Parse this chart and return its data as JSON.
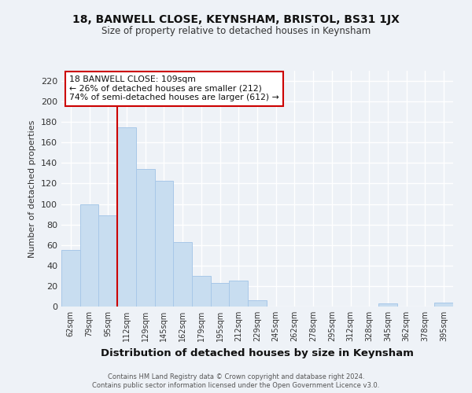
{
  "title": "18, BANWELL CLOSE, KEYNSHAM, BRISTOL, BS31 1JX",
  "subtitle": "Size of property relative to detached houses in Keynsham",
  "xlabel": "Distribution of detached houses by size in Keynsham",
  "ylabel": "Number of detached properties",
  "bar_color": "#c8ddf0",
  "bar_edge_color": "#a8c8e8",
  "bins": [
    "62sqm",
    "79sqm",
    "95sqm",
    "112sqm",
    "129sqm",
    "145sqm",
    "162sqm",
    "179sqm",
    "195sqm",
    "212sqm",
    "229sqm",
    "245sqm",
    "262sqm",
    "278sqm",
    "295sqm",
    "312sqm",
    "328sqm",
    "345sqm",
    "362sqm",
    "378sqm",
    "395sqm"
  ],
  "values": [
    55,
    100,
    89,
    175,
    134,
    123,
    63,
    30,
    23,
    25,
    6,
    0,
    0,
    0,
    0,
    0,
    0,
    3,
    0,
    0,
    4
  ],
  "ylim": [
    0,
    230
  ],
  "yticks": [
    0,
    20,
    40,
    60,
    80,
    100,
    120,
    140,
    160,
    180,
    200,
    220
  ],
  "vline_x": 3,
  "vline_color": "#cc0000",
  "annotation_line1": "18 BANWELL CLOSE: 109sqm",
  "annotation_line2": "← 26% of detached houses are smaller (212)",
  "annotation_line3": "74% of semi-detached houses are larger (612) →",
  "annotation_box_color": "#ffffff",
  "annotation_box_edge": "#cc0000",
  "bg_color": "#eef2f7",
  "grid_color": "#ffffff",
  "footer1": "Contains HM Land Registry data © Crown copyright and database right 2024.",
  "footer2": "Contains public sector information licensed under the Open Government Licence v3.0."
}
